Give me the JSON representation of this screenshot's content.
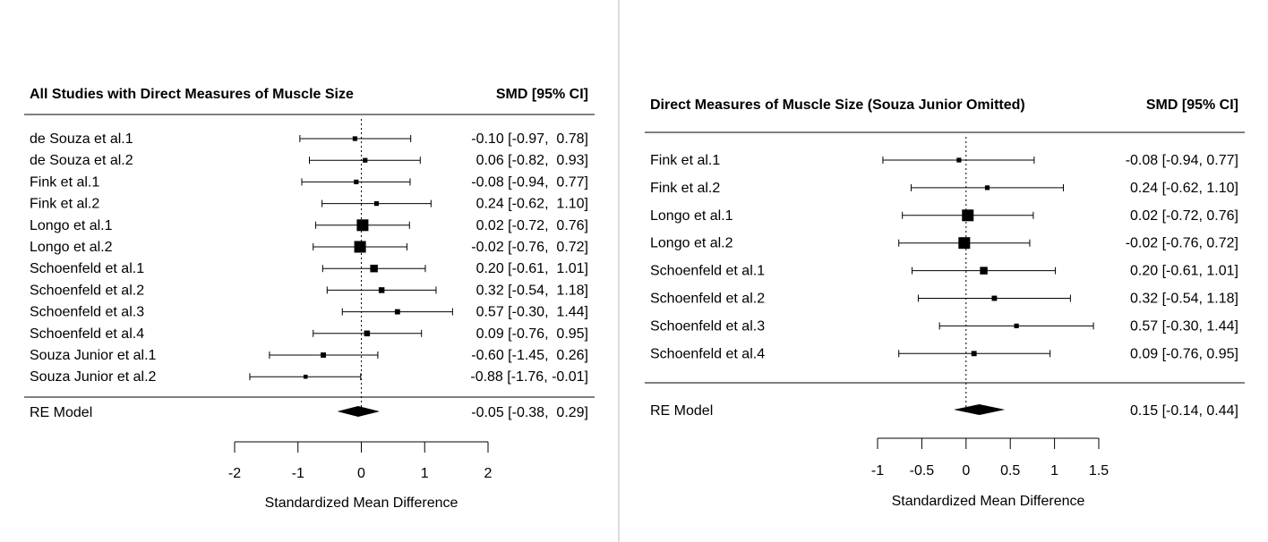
{
  "chart_data": [
    {
      "type": "forest",
      "title": "All Studies with Direct Measures of Muscle Size",
      "value_header": "SMD [95% CI]",
      "xlabel": "Standardized Mean Difference",
      "xlim": [
        -2,
        2
      ],
      "xticks": [
        "-2",
        "-1",
        "0",
        "1",
        "2"
      ],
      "reference_line": 0,
      "studies": [
        {
          "label": "de Souza et al.1",
          "est": -0.1,
          "lo": -0.97,
          "hi": 0.78,
          "weight": 0.4,
          "text": "-0.10 [-0.97,  0.78]"
        },
        {
          "label": "de Souza et al.2",
          "est": 0.06,
          "lo": -0.82,
          "hi": 0.93,
          "weight": 0.4,
          "text": "0.06 [-0.82,  0.93]"
        },
        {
          "label": "Fink et al.1",
          "est": -0.08,
          "lo": -0.94,
          "hi": 0.77,
          "weight": 0.4,
          "text": "-0.08 [-0.94,  0.77]"
        },
        {
          "label": "Fink et al.2",
          "est": 0.24,
          "lo": -0.62,
          "hi": 1.1,
          "weight": 0.4,
          "text": "0.24 [-0.62,  1.10]"
        },
        {
          "label": "Longo et al.1",
          "est": 0.02,
          "lo": -0.72,
          "hi": 0.76,
          "weight": 1.0,
          "text": "0.02 [-0.72,  0.76]"
        },
        {
          "label": "Longo et al.2",
          "est": -0.02,
          "lo": -0.76,
          "hi": 0.72,
          "weight": 1.0,
          "text": "-0.02 [-0.76,  0.72]"
        },
        {
          "label": "Schoenfeld et al.1",
          "est": 0.2,
          "lo": -0.61,
          "hi": 1.01,
          "weight": 0.65,
          "text": "0.20 [-0.61,  1.01]"
        },
        {
          "label": "Schoenfeld et al.2",
          "est": 0.32,
          "lo": -0.54,
          "hi": 1.18,
          "weight": 0.5,
          "text": "0.32 [-0.54,  1.18]"
        },
        {
          "label": "Schoenfeld et al.3",
          "est": 0.57,
          "lo": -0.3,
          "hi": 1.44,
          "weight": 0.45,
          "text": "0.57 [-0.30,  1.44]"
        },
        {
          "label": "Schoenfeld et al.4",
          "est": 0.09,
          "lo": -0.76,
          "hi": 0.95,
          "weight": 0.5,
          "text": "0.09 [-0.76,  0.95]"
        },
        {
          "label": "Souza Junior et al.1",
          "est": -0.6,
          "lo": -1.45,
          "hi": 0.26,
          "weight": 0.45,
          "text": "-0.60 [-1.45,  0.26]"
        },
        {
          "label": "Souza Junior et al.2",
          "est": -0.88,
          "lo": -1.76,
          "hi": -0.01,
          "weight": 0.35,
          "text": "-0.88 [-1.76, -0.01]"
        }
      ],
      "summary": {
        "label": "RE Model",
        "est": -0.05,
        "lo": -0.38,
        "hi": 0.29,
        "text": "-0.05 [-0.38,  0.29]"
      }
    },
    {
      "type": "forest",
      "title": "Direct Measures of Muscle Size (Souza Junior Omitted)",
      "value_header": "SMD [95% CI]",
      "xlabel": "Standardized Mean Difference",
      "xlim": [
        -1,
        1.5
      ],
      "xticks": [
        "-1",
        "-0.5",
        "0",
        "0.5",
        "1",
        "1.5"
      ],
      "reference_line": 0,
      "studies": [
        {
          "label": "Fink et al.1",
          "est": -0.08,
          "lo": -0.94,
          "hi": 0.77,
          "weight": 0.4,
          "text": "-0.08 [-0.94, 0.77]"
        },
        {
          "label": "Fink et al.2",
          "est": 0.24,
          "lo": -0.62,
          "hi": 1.1,
          "weight": 0.4,
          "text": "0.24 [-0.62, 1.10]"
        },
        {
          "label": "Longo et al.1",
          "est": 0.02,
          "lo": -0.72,
          "hi": 0.76,
          "weight": 1.0,
          "text": "0.02 [-0.72, 0.76]"
        },
        {
          "label": "Longo et al.2",
          "est": -0.02,
          "lo": -0.76,
          "hi": 0.72,
          "weight": 1.0,
          "text": "-0.02 [-0.76, 0.72]"
        },
        {
          "label": "Schoenfeld et al.1",
          "est": 0.2,
          "lo": -0.61,
          "hi": 1.01,
          "weight": 0.65,
          "text": "0.20 [-0.61, 1.01]"
        },
        {
          "label": "Schoenfeld et al.2",
          "est": 0.32,
          "lo": -0.54,
          "hi": 1.18,
          "weight": 0.45,
          "text": "0.32 [-0.54, 1.18]"
        },
        {
          "label": "Schoenfeld et al.3",
          "est": 0.57,
          "lo": -0.3,
          "hi": 1.44,
          "weight": 0.4,
          "text": "0.57 [-0.30, 1.44]"
        },
        {
          "label": "Schoenfeld et al.4",
          "est": 0.09,
          "lo": -0.76,
          "hi": 0.95,
          "weight": 0.45,
          "text": "0.09 [-0.76, 0.95]"
        }
      ],
      "summary": {
        "label": "RE Model",
        "est": 0.15,
        "lo": -0.14,
        "hi": 0.44,
        "text": "0.15 [-0.14, 0.44]"
      }
    }
  ]
}
